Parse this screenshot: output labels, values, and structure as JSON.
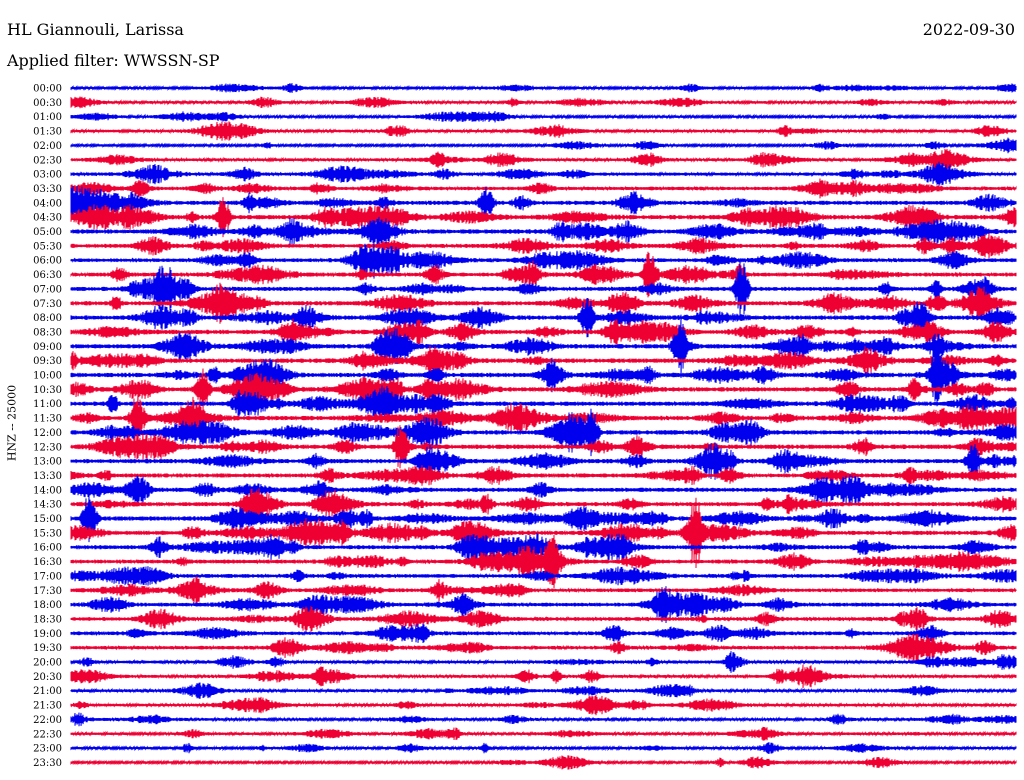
{
  "header": {
    "station": "HL Giannouli, Larissa",
    "date": "2022-09-30",
    "filter_label": "Applied filter: WWSSN-SP"
  },
  "chart_data": {
    "type": "line",
    "title": "HL Giannouli, Larissa",
    "subtitle": "Applied filter: WWSSN-SP",
    "ylabel": "HNZ -- 25000",
    "tick_labels": [
      "00:00",
      "00:30",
      "01:00",
      "01:30",
      "02:00",
      "02:30",
      "03:00",
      "03:30",
      "04:00",
      "04:30",
      "05:00",
      "05:30",
      "06:00",
      "06:30",
      "07:00",
      "07:30",
      "08:00",
      "08:30",
      "09:00",
      "09:30",
      "10:00",
      "10:30",
      "11:00",
      "11:30",
      "12:00",
      "12:30",
      "13:00",
      "13:30",
      "14:00",
      "14:30",
      "15:00",
      "15:30",
      "16:00",
      "16:30",
      "17:00",
      "17:30",
      "18:00",
      "18:30",
      "19:00",
      "19:30",
      "20:00",
      "20:30",
      "21:00",
      "21:30",
      "22:00",
      "22:30",
      "23:00",
      "23:30"
    ],
    "trace_colors": [
      "#0000ee",
      "#ee0033"
    ],
    "activity_level": [
      0.35,
      0.45,
      0.35,
      0.5,
      0.3,
      0.55,
      0.65,
      0.7,
      0.9,
      1.0,
      1.0,
      0.85,
      0.8,
      0.85,
      0.9,
      0.95,
      1.0,
      1.0,
      1.0,
      1.0,
      1.0,
      1.0,
      1.0,
      1.0,
      1.0,
      1.0,
      0.95,
      0.9,
      0.9,
      0.9,
      1.0,
      0.95,
      0.9,
      0.85,
      0.8,
      0.75,
      0.8,
      0.8,
      0.8,
      0.7,
      0.6,
      0.55,
      0.5,
      0.5,
      0.45,
      0.45,
      0.4,
      0.35
    ],
    "grid": false
  },
  "style": {
    "background": "#ffffff",
    "text_color": "#000000"
  }
}
